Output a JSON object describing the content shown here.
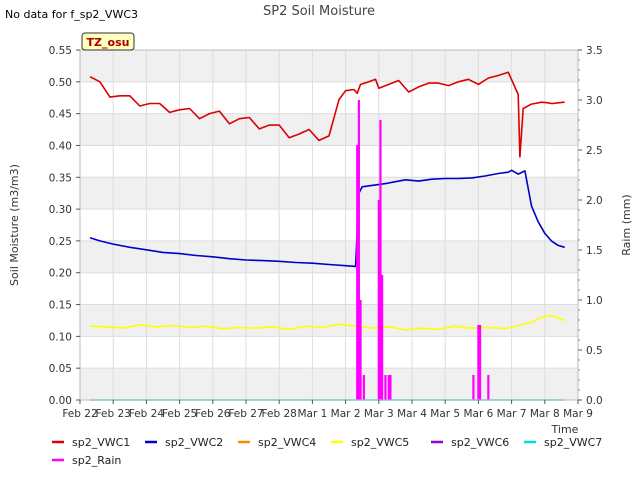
{
  "no_data_note": "No data for f_sp2_VWC3",
  "tz_badge": "TZ_osu",
  "chart_data": {
    "type": "line",
    "title": "SP2 Soil Moisture",
    "xlabel": "Time",
    "ylabel": "Soil Moisture (m3/m3)",
    "y2label": "Raim (mm)",
    "xlim": [
      0,
      15
    ],
    "ylim": [
      0,
      0.55
    ],
    "y2lim": [
      0,
      3.5
    ],
    "x_tick_labels": [
      "Feb 22",
      "Feb 23",
      "Feb 24",
      "Feb 25",
      "Feb 26",
      "Feb 27",
      "Feb 28",
      "Mar 1",
      "Mar 2",
      "Mar 3",
      "Mar 4",
      "Mar 5",
      "Mar 6",
      "Mar 7",
      "Mar 8",
      "Mar 9"
    ],
    "y_ticks": [
      "0.00",
      "0.05",
      "0.10",
      "0.15",
      "0.20",
      "0.25",
      "0.30",
      "0.35",
      "0.40",
      "0.45",
      "0.50",
      "0.55"
    ],
    "y2_ticks": [
      "0.0",
      "0.5",
      "1.0",
      "1.5",
      "2.0",
      "2.5",
      "3.0",
      "3.5"
    ],
    "grid": true,
    "legend_placement": "bottom",
    "series": [
      {
        "name": "sp2_VWC1",
        "color": "#dd0000",
        "axis": "left",
        "x": [
          0.3,
          0.6,
          0.9,
          1.2,
          1.5,
          1.8,
          2.1,
          2.4,
          2.7,
          3.0,
          3.3,
          3.6,
          3.9,
          4.2,
          4.5,
          4.8,
          5.1,
          5.4,
          5.7,
          6.0,
          6.3,
          6.6,
          6.9,
          7.2,
          7.5,
          7.8,
          8.0,
          8.25,
          8.35,
          8.45,
          8.7,
          8.9,
          9.0,
          9.3,
          9.6,
          9.9,
          10.2,
          10.5,
          10.8,
          11.1,
          11.4,
          11.7,
          12.0,
          12.3,
          12.6,
          12.9,
          13.2,
          13.25,
          13.35,
          13.6,
          13.9,
          14.1,
          14.2,
          14.25,
          14.4,
          14.6
        ],
        "y": [
          0.508,
          0.5,
          0.476,
          0.478,
          0.478,
          0.462,
          0.466,
          0.466,
          0.452,
          0.456,
          0.458,
          0.442,
          0.45,
          0.454,
          0.434,
          0.442,
          0.444,
          0.426,
          0.432,
          0.432,
          0.412,
          0.418,
          0.425,
          0.408,
          0.415,
          0.472,
          0.486,
          0.488,
          0.482,
          0.496,
          0.5,
          0.504,
          0.49,
          0.496,
          0.502,
          0.484,
          0.492,
          0.498,
          0.498,
          0.494,
          0.5,
          0.504,
          0.496,
          0.506,
          0.51,
          0.515,
          0.48,
          0.382,
          0.458,
          0.465,
          0.468,
          0.467,
          0.466,
          0.466,
          0.467,
          0.468
        ]
      },
      {
        "name": "sp2_VWC2",
        "color": "#0000cc",
        "axis": "left",
        "x": [
          0.3,
          0.6,
          1.0,
          1.5,
          2.0,
          2.5,
          3.0,
          3.5,
          4.0,
          4.5,
          5.0,
          5.5,
          6.0,
          6.5,
          7.0,
          7.5,
          8.0,
          8.3,
          8.4,
          8.5,
          8.9,
          9.2,
          9.5,
          9.8,
          10.2,
          10.6,
          11.0,
          11.4,
          11.8,
          12.2,
          12.6,
          12.9,
          13.0,
          13.2,
          13.4,
          13.6,
          13.8,
          14.0,
          14.2,
          14.4,
          14.6
        ],
        "y": [
          0.255,
          0.25,
          0.245,
          0.24,
          0.236,
          0.232,
          0.23,
          0.227,
          0.225,
          0.222,
          0.22,
          0.219,
          0.218,
          0.216,
          0.215,
          0.213,
          0.211,
          0.21,
          0.325,
          0.335,
          0.338,
          0.34,
          0.343,
          0.346,
          0.344,
          0.347,
          0.348,
          0.348,
          0.349,
          0.352,
          0.356,
          0.358,
          0.361,
          0.355,
          0.36,
          0.305,
          0.28,
          0.262,
          0.25,
          0.243,
          0.24
        ]
      },
      {
        "name": "sp2_VWC4",
        "color": "#ff8800",
        "axis": "left",
        "x": [],
        "y": []
      },
      {
        "name": "sp2_VWC5",
        "color": "#ffff00",
        "axis": "left",
        "x": [
          0.3,
          0.8,
          1.3,
          1.8,
          2.3,
          2.8,
          3.3,
          3.8,
          4.3,
          4.8,
          5.3,
          5.8,
          6.3,
          6.8,
          7.3,
          7.8,
          8.3,
          8.8,
          9.3,
          9.8,
          10.3,
          10.8,
          11.3,
          11.8,
          12.3,
          12.8,
          13.3,
          13.6,
          13.9,
          14.2,
          14.6
        ],
        "y": [
          0.116,
          0.115,
          0.113,
          0.118,
          0.115,
          0.117,
          0.114,
          0.116,
          0.112,
          0.114,
          0.113,
          0.115,
          0.111,
          0.116,
          0.114,
          0.119,
          0.116,
          0.113,
          0.115,
          0.11,
          0.113,
          0.111,
          0.116,
          0.113,
          0.114,
          0.112,
          0.118,
          0.122,
          0.13,
          0.133,
          0.125
        ]
      },
      {
        "name": "sp2_VWC6",
        "color": "#9900cc",
        "axis": "left",
        "x": [],
        "y": []
      },
      {
        "name": "sp2_VWC7",
        "color": "#00dddd",
        "axis": "left",
        "x": [
          0.3,
          14.6
        ],
        "y": [
          0.0,
          0.0
        ]
      },
      {
        "name": "sp2_Rain",
        "color": "#ff00ff",
        "axis": "right",
        "bars": [
          {
            "x": 8.35,
            "v": 2.55
          },
          {
            "x": 8.4,
            "v": 3.0
          },
          {
            "x": 8.45,
            "v": 1.0
          },
          {
            "x": 8.55,
            "v": 0.25
          },
          {
            "x": 9.0,
            "v": 2.0
          },
          {
            "x": 9.05,
            "v": 2.8
          },
          {
            "x": 9.1,
            "v": 1.25
          },
          {
            "x": 9.2,
            "v": 0.25
          },
          {
            "x": 9.3,
            "v": 0.25
          },
          {
            "x": 9.35,
            "v": 0.25
          },
          {
            "x": 11.85,
            "v": 0.25
          },
          {
            "x": 12.0,
            "v": 0.75
          },
          {
            "x": 12.05,
            "v": 0.75
          },
          {
            "x": 12.3,
            "v": 0.25
          }
        ]
      }
    ]
  }
}
